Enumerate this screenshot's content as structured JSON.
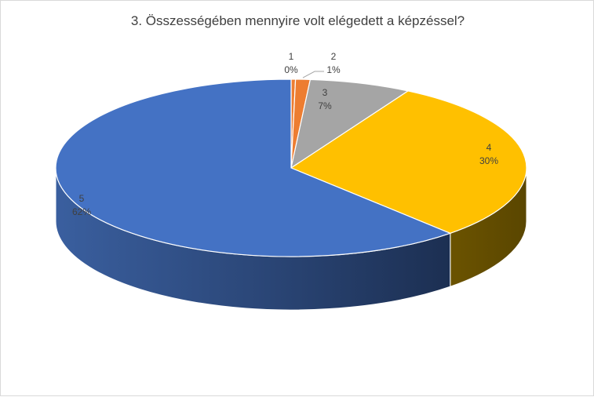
{
  "chart_data": {
    "type": "pie",
    "title": "3. Összességében mennyire volt elégedett a képzéssel?",
    "categories": [
      "1",
      "2",
      "3",
      "4",
      "5"
    ],
    "values": [
      0.3,
      1,
      7,
      30,
      62
    ],
    "value_labels": [
      "0%",
      "1%",
      "7%",
      "30%",
      "62%"
    ],
    "colors": [
      "#ED7D31",
      "#ED7D31",
      "#A5A5A5",
      "#FFC000",
      "#4472C4"
    ],
    "legend": "none",
    "style": "3d"
  }
}
